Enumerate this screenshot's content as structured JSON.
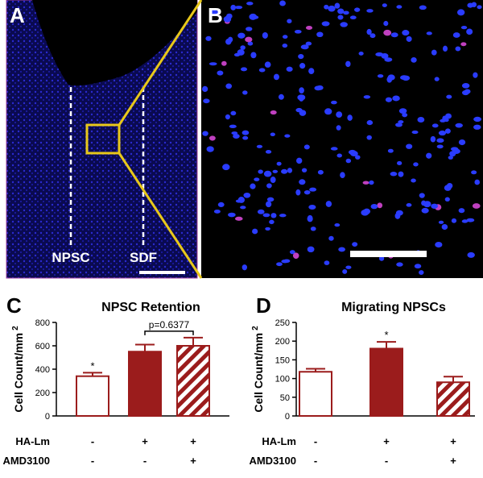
{
  "images": [
    {
      "label": "A",
      "annotations": [
        "NPSC",
        "SDF"
      ]
    },
    {
      "label": "B"
    }
  ],
  "chart_data": [
    {
      "type": "bar",
      "panel": "C",
      "title": "NPSC Retention",
      "ylabel": "Cell Count/mm",
      "ylabel_sup": "2",
      "color": "#9b1c1c",
      "styles": [
        "outline",
        "solid",
        "hatched"
      ],
      "values": [
        340,
        550,
        600
      ],
      "errors": [
        30,
        60,
        70
      ],
      "ylim": [
        0,
        800
      ],
      "yticks": [
        0,
        200,
        400,
        600,
        800
      ],
      "conditions": [
        {
          "name": "HA-Lm",
          "values": [
            "-",
            "+",
            "+"
          ]
        },
        {
          "name": "AMD3100",
          "values": [
            "-",
            "-",
            "+"
          ]
        }
      ],
      "stars": [
        {
          "text": "*",
          "bar": 0
        }
      ],
      "bracket": {
        "text": "p=0.6377",
        "bars": [
          1,
          2
        ]
      }
    },
    {
      "type": "bar",
      "panel": "D",
      "title": "Migrating NPSCs",
      "ylabel": "Cell Count/mm",
      "ylabel_sup": "2",
      "color": "#9b1c1c",
      "styles": [
        "outline",
        "solid",
        "hatched"
      ],
      "values": [
        118,
        180,
        90
      ],
      "errors": [
        8,
        18,
        15
      ],
      "ylim": [
        0,
        250
      ],
      "yticks": [
        0,
        50,
        100,
        150,
        200,
        250
      ],
      "conditions": [
        {
          "name": "HA-Lm",
          "values": [
            "-",
            "+",
            "+"
          ]
        },
        {
          "name": "AMD3100",
          "values": [
            "-",
            "-",
            "+"
          ]
        }
      ],
      "stars": [
        {
          "text": "*",
          "bar": 1
        }
      ]
    }
  ]
}
